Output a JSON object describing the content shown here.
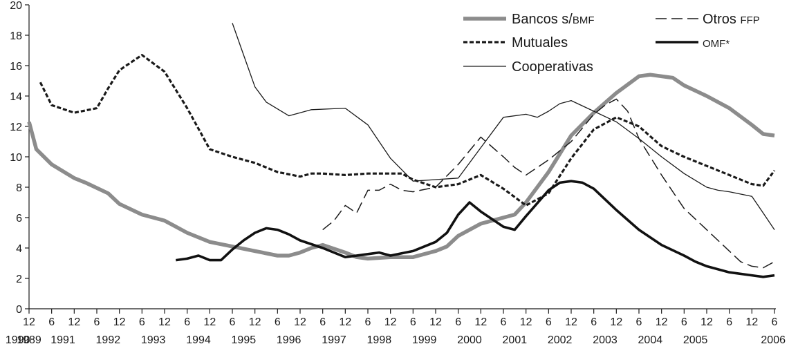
{
  "chart_data": {
    "type": "line",
    "title": "",
    "xlabel": "",
    "ylabel": "",
    "ylim": [
      0,
      20
    ],
    "yticks": [
      "0",
      "2",
      "4",
      "6",
      "8",
      "10",
      "12",
      "14",
      "16",
      "18",
      "20"
    ],
    "grid": false,
    "legend_position": "top-right",
    "x_tick_labels": [
      "12",
      "6",
      "12",
      "6",
      "12",
      "6",
      "12",
      "6",
      "12",
      "6",
      "12",
      "6",
      "12",
      "6",
      "12",
      "6",
      "12",
      "6",
      "12",
      "6",
      "12",
      "6",
      "12",
      "6",
      "12",
      "6",
      "12",
      "6",
      "12",
      "6",
      "12",
      "6",
      "12",
      "6"
    ],
    "x_year_labels": [
      "1989",
      "1990",
      "1991",
      "1992",
      "1993",
      "1994",
      "1995",
      "1996",
      "1997",
      "1998",
      "1999",
      "2000",
      "2001",
      "2002",
      "2003",
      "2004",
      "2005",
      "2006"
    ],
    "legend": {
      "bancos": {
        "main": "Bancos s/",
        "small": "BMF"
      },
      "otros": {
        "main": "Otros ",
        "small": "FFP"
      },
      "mutuales": {
        "main": "Mutuales"
      },
      "omf": {
        "small": "OMF*"
      },
      "cooperativas": {
        "main": "Cooperativas"
      }
    },
    "series": [
      {
        "name": "Bancos s/BMF",
        "color": "#8c8c8c",
        "style": "solid-thick",
        "points": [
          [
            1989.92,
            12.3
          ],
          [
            1990.08,
            10.5
          ],
          [
            1990.42,
            9.5
          ],
          [
            1990.92,
            8.6
          ],
          [
            1991.17,
            8.3
          ],
          [
            1991.67,
            7.6
          ],
          [
            1991.92,
            6.9
          ],
          [
            1992.42,
            6.2
          ],
          [
            1992.92,
            5.8
          ],
          [
            1993.42,
            5.0
          ],
          [
            1993.92,
            4.4
          ],
          [
            1994.42,
            4.1
          ],
          [
            1994.92,
            3.8
          ],
          [
            1995.42,
            3.5
          ],
          [
            1995.67,
            3.5
          ],
          [
            1995.92,
            3.7
          ],
          [
            1996.17,
            4.0
          ],
          [
            1996.42,
            4.2
          ],
          [
            1996.92,
            3.7
          ],
          [
            1997.17,
            3.4
          ],
          [
            1997.42,
            3.3
          ],
          [
            1997.92,
            3.4
          ],
          [
            1998.42,
            3.4
          ],
          [
            1998.92,
            3.8
          ],
          [
            1999.17,
            4.1
          ],
          [
            1999.42,
            4.8
          ],
          [
            1999.92,
            5.6
          ],
          [
            2000.42,
            6.0
          ],
          [
            2000.67,
            6.2
          ],
          [
            2000.92,
            7.0
          ],
          [
            2001.42,
            9.0
          ],
          [
            2001.92,
            11.4
          ],
          [
            2002.42,
            12.9
          ],
          [
            2002.92,
            14.2
          ],
          [
            2003.42,
            15.3
          ],
          [
            2003.67,
            15.4
          ],
          [
            2004.17,
            15.2
          ],
          [
            2004.42,
            14.7
          ],
          [
            2004.92,
            14.0
          ],
          [
            2005.42,
            13.2
          ],
          [
            2005.92,
            12.1
          ],
          [
            2006.17,
            11.5
          ],
          [
            2006.42,
            11.4
          ]
        ]
      },
      {
        "name": "Otros FFP",
        "color": "#1a1a1a",
        "style": "long-dash",
        "points": [
          [
            1996.42,
            5.2
          ],
          [
            1996.67,
            5.8
          ],
          [
            1996.92,
            6.8
          ],
          [
            1997.17,
            6.3
          ],
          [
            1997.42,
            7.8
          ],
          [
            1997.67,
            7.8
          ],
          [
            1997.92,
            8.2
          ],
          [
            1998.17,
            7.8
          ],
          [
            1998.42,
            7.7
          ],
          [
            1998.92,
            8.0
          ],
          [
            1999.42,
            9.5
          ],
          [
            1999.92,
            11.3
          ],
          [
            2000.42,
            10.0
          ],
          [
            2000.67,
            9.3
          ],
          [
            2000.92,
            8.8
          ],
          [
            2001.42,
            9.8
          ],
          [
            2001.92,
            11.0
          ],
          [
            2002.42,
            12.8
          ],
          [
            2002.67,
            13.4
          ],
          [
            2002.92,
            13.8
          ],
          [
            2003.17,
            13.0
          ],
          [
            2003.42,
            11.2
          ],
          [
            2003.92,
            8.8
          ],
          [
            2004.42,
            6.6
          ],
          [
            2004.92,
            5.2
          ],
          [
            2005.42,
            3.8
          ],
          [
            2005.67,
            3.1
          ],
          [
            2005.92,
            2.8
          ],
          [
            2006.17,
            2.7
          ],
          [
            2006.42,
            3.1
          ]
        ]
      },
      {
        "name": "Mutuales",
        "color": "#1a1a1a",
        "style": "short-dash",
        "points": [
          [
            1990.17,
            14.9
          ],
          [
            1990.42,
            13.4
          ],
          [
            1990.92,
            12.9
          ],
          [
            1991.42,
            13.2
          ],
          [
            1991.67,
            14.5
          ],
          [
            1991.92,
            15.7
          ],
          [
            1992.42,
            16.7
          ],
          [
            1992.92,
            15.6
          ],
          [
            1993.42,
            13.2
          ],
          [
            1993.92,
            10.5
          ],
          [
            1994.42,
            10.0
          ],
          [
            1994.92,
            9.6
          ],
          [
            1995.42,
            9.0
          ],
          [
            1995.92,
            8.7
          ],
          [
            1996.17,
            8.9
          ],
          [
            1996.42,
            8.9
          ],
          [
            1996.92,
            8.8
          ],
          [
            1997.42,
            8.9
          ],
          [
            1997.92,
            8.9
          ],
          [
            1998.17,
            8.9
          ],
          [
            1998.42,
            8.5
          ],
          [
            1998.92,
            8.0
          ],
          [
            1999.42,
            8.2
          ],
          [
            1999.92,
            8.8
          ],
          [
            2000.42,
            7.9
          ],
          [
            2000.92,
            6.8
          ],
          [
            2001.42,
            7.6
          ],
          [
            2001.92,
            9.9
          ],
          [
            2002.42,
            11.8
          ],
          [
            2002.92,
            12.6
          ],
          [
            2003.42,
            12.0
          ],
          [
            2003.92,
            10.7
          ],
          [
            2004.42,
            10.0
          ],
          [
            2004.92,
            9.4
          ],
          [
            2005.42,
            8.8
          ],
          [
            2005.92,
            8.2
          ],
          [
            2006.17,
            8.1
          ],
          [
            2006.42,
            9.1
          ]
        ]
      },
      {
        "name": "OMF*",
        "color": "#111111",
        "style": "solid-bold",
        "points": [
          [
            1993.17,
            3.2
          ],
          [
            1993.42,
            3.3
          ],
          [
            1993.67,
            3.5
          ],
          [
            1993.92,
            3.2
          ],
          [
            1994.17,
            3.2
          ],
          [
            1994.42,
            3.9
          ],
          [
            1994.67,
            4.5
          ],
          [
            1994.92,
            5.0
          ],
          [
            1995.17,
            5.3
          ],
          [
            1995.42,
            5.2
          ],
          [
            1995.67,
            4.9
          ],
          [
            1995.92,
            4.5
          ],
          [
            1996.42,
            4.0
          ],
          [
            1996.92,
            3.4
          ],
          [
            1997.42,
            3.6
          ],
          [
            1997.67,
            3.7
          ],
          [
            1997.92,
            3.5
          ],
          [
            1998.42,
            3.8
          ],
          [
            1998.92,
            4.4
          ],
          [
            1999.17,
            5.0
          ],
          [
            1999.42,
            6.2
          ],
          [
            1999.67,
            7.0
          ],
          [
            1999.92,
            6.4
          ],
          [
            2000.42,
            5.4
          ],
          [
            2000.67,
            5.2
          ],
          [
            2000.92,
            6.1
          ],
          [
            2001.42,
            7.8
          ],
          [
            2001.67,
            8.3
          ],
          [
            2001.92,
            8.4
          ],
          [
            2002.17,
            8.3
          ],
          [
            2002.42,
            7.9
          ],
          [
            2002.92,
            6.5
          ],
          [
            2003.42,
            5.2
          ],
          [
            2003.92,
            4.2
          ],
          [
            2004.42,
            3.5
          ],
          [
            2004.67,
            3.1
          ],
          [
            2004.92,
            2.8
          ],
          [
            2005.42,
            2.4
          ],
          [
            2005.92,
            2.2
          ],
          [
            2006.17,
            2.1
          ],
          [
            2006.42,
            2.2
          ]
        ]
      },
      {
        "name": "Cooperativas",
        "color": "#1a1a1a",
        "style": "solid-thin",
        "points": [
          [
            1994.42,
            18.8
          ],
          [
            1994.67,
            16.7
          ],
          [
            1994.92,
            14.6
          ],
          [
            1995.17,
            13.6
          ],
          [
            1995.67,
            12.7
          ],
          [
            1995.92,
            12.9
          ],
          [
            1996.17,
            13.1
          ],
          [
            1996.92,
            13.2
          ],
          [
            1997.42,
            12.1
          ],
          [
            1997.92,
            9.9
          ],
          [
            1998.42,
            8.4
          ],
          [
            1998.92,
            8.5
          ],
          [
            1999.42,
            8.6
          ],
          [
            1999.92,
            10.6
          ],
          [
            2000.42,
            12.6
          ],
          [
            2000.92,
            12.8
          ],
          [
            2001.17,
            12.6
          ],
          [
            2001.42,
            13.0
          ],
          [
            2001.67,
            13.5
          ],
          [
            2001.92,
            13.7
          ],
          [
            2002.42,
            13.0
          ],
          [
            2002.92,
            12.3
          ],
          [
            2003.42,
            11.2
          ],
          [
            2003.92,
            10.0
          ],
          [
            2004.42,
            8.9
          ],
          [
            2004.92,
            8.0
          ],
          [
            2005.17,
            7.8
          ],
          [
            2005.42,
            7.7
          ],
          [
            2005.92,
            7.4
          ],
          [
            2006.17,
            6.3
          ],
          [
            2006.42,
            5.2
          ]
        ]
      }
    ]
  }
}
